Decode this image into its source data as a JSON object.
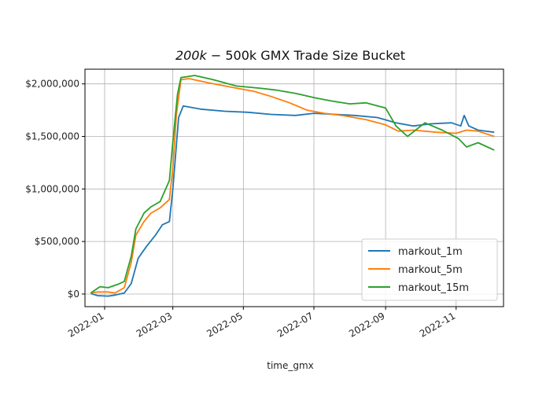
{
  "chart_data": {
    "type": "line",
    "title": "200k − 500k GMX Trade Size Bucket",
    "title_math": "200k",
    "title_rest": " − 500k GMX Trade Size Bucket",
    "xlabel": "time_gmx",
    "ylabel": "",
    "x_ticks": [
      "2022-01",
      "2022-03",
      "2022-05",
      "2022-07",
      "2022-09",
      "2022-11"
    ],
    "y_ticks": [
      "$0",
      "$500,000",
      "$1,000,000",
      "$1,500,000",
      "$2,000,000"
    ],
    "y_tick_values": [
      0,
      500000,
      1000000,
      1500000,
      2000000
    ],
    "xlim": [
      "2021-12-15",
      "2022-12-12"
    ],
    "ylim": [
      -120000,
      2140000
    ],
    "grid": true,
    "legend_position": "lower-right",
    "series": [
      {
        "name": "markout_1m",
        "color": "#1f77b4",
        "points": [
          [
            "2021-12-20",
            5000
          ],
          [
            "2021-12-26",
            -15000
          ],
          [
            "2022-01-04",
            -20000
          ],
          [
            "2022-01-10",
            -10000
          ],
          [
            "2022-01-18",
            10000
          ],
          [
            "2022-01-24",
            100000
          ],
          [
            "2022-01-30",
            340000
          ],
          [
            "2022-02-06",
            450000
          ],
          [
            "2022-02-14",
            560000
          ],
          [
            "2022-02-20",
            660000
          ],
          [
            "2022-02-26",
            690000
          ],
          [
            "2022-03-01",
            1000000
          ],
          [
            "2022-03-06",
            1680000
          ],
          [
            "2022-03-10",
            1790000
          ],
          [
            "2022-03-25",
            1760000
          ],
          [
            "2022-04-15",
            1740000
          ],
          [
            "2022-05-05",
            1730000
          ],
          [
            "2022-05-25",
            1710000
          ],
          [
            "2022-06-15",
            1700000
          ],
          [
            "2022-07-01",
            1720000
          ],
          [
            "2022-07-20",
            1710000
          ],
          [
            "2022-08-05",
            1700000
          ],
          [
            "2022-08-25",
            1680000
          ],
          [
            "2022-09-10",
            1630000
          ],
          [
            "2022-09-25",
            1600000
          ],
          [
            "2022-10-10",
            1620000
          ],
          [
            "2022-10-28",
            1630000
          ],
          [
            "2022-11-05",
            1600000
          ],
          [
            "2022-11-08",
            1700000
          ],
          [
            "2022-11-12",
            1600000
          ],
          [
            "2022-11-20",
            1560000
          ],
          [
            "2022-12-04",
            1540000
          ]
        ]
      },
      {
        "name": "markout_5m",
        "color": "#ff7f0e",
        "points": [
          [
            "2021-12-20",
            10000
          ],
          [
            "2021-12-26",
            20000
          ],
          [
            "2022-01-04",
            20000
          ],
          [
            "2022-01-10",
            10000
          ],
          [
            "2022-01-18",
            60000
          ],
          [
            "2022-01-24",
            300000
          ],
          [
            "2022-01-28",
            560000
          ],
          [
            "2022-02-04",
            690000
          ],
          [
            "2022-02-10",
            770000
          ],
          [
            "2022-02-18",
            820000
          ],
          [
            "2022-02-26",
            900000
          ],
          [
            "2022-03-01",
            1200000
          ],
          [
            "2022-03-04",
            1700000
          ],
          [
            "2022-03-08",
            2040000
          ],
          [
            "2022-03-15",
            2050000
          ],
          [
            "2022-04-01",
            2010000
          ],
          [
            "2022-04-20",
            1970000
          ],
          [
            "2022-05-10",
            1930000
          ],
          [
            "2022-05-25",
            1880000
          ],
          [
            "2022-06-10",
            1820000
          ],
          [
            "2022-06-25",
            1750000
          ],
          [
            "2022-07-10",
            1720000
          ],
          [
            "2022-07-25",
            1700000
          ],
          [
            "2022-08-15",
            1660000
          ],
          [
            "2022-09-01",
            1610000
          ],
          [
            "2022-09-12",
            1550000
          ],
          [
            "2022-09-25",
            1560000
          ],
          [
            "2022-10-15",
            1540000
          ],
          [
            "2022-11-01",
            1530000
          ],
          [
            "2022-11-10",
            1560000
          ],
          [
            "2022-11-20",
            1550000
          ],
          [
            "2022-12-04",
            1500000
          ]
        ]
      },
      {
        "name": "markout_15m",
        "color": "#2ca02c",
        "points": [
          [
            "2021-12-20",
            10000
          ],
          [
            "2021-12-28",
            70000
          ],
          [
            "2022-01-04",
            60000
          ],
          [
            "2022-01-12",
            90000
          ],
          [
            "2022-01-18",
            120000
          ],
          [
            "2022-01-24",
            360000
          ],
          [
            "2022-01-28",
            620000
          ],
          [
            "2022-02-04",
            770000
          ],
          [
            "2022-02-10",
            830000
          ],
          [
            "2022-02-18",
            880000
          ],
          [
            "2022-02-26",
            1080000
          ],
          [
            "2022-03-01",
            1450000
          ],
          [
            "2022-03-05",
            1900000
          ],
          [
            "2022-03-08",
            2060000
          ],
          [
            "2022-03-20",
            2080000
          ],
          [
            "2022-04-05",
            2040000
          ],
          [
            "2022-04-25",
            1980000
          ],
          [
            "2022-05-15",
            1960000
          ],
          [
            "2022-05-30",
            1940000
          ],
          [
            "2022-06-15",
            1910000
          ],
          [
            "2022-07-01",
            1870000
          ],
          [
            "2022-07-15",
            1840000
          ],
          [
            "2022-08-01",
            1810000
          ],
          [
            "2022-08-15",
            1820000
          ],
          [
            "2022-09-01",
            1770000
          ],
          [
            "2022-09-10",
            1600000
          ],
          [
            "2022-09-20",
            1500000
          ],
          [
            "2022-10-05",
            1630000
          ],
          [
            "2022-10-20",
            1560000
          ],
          [
            "2022-11-03",
            1480000
          ],
          [
            "2022-11-10",
            1400000
          ],
          [
            "2022-11-20",
            1440000
          ],
          [
            "2022-12-04",
            1370000
          ]
        ]
      }
    ]
  }
}
